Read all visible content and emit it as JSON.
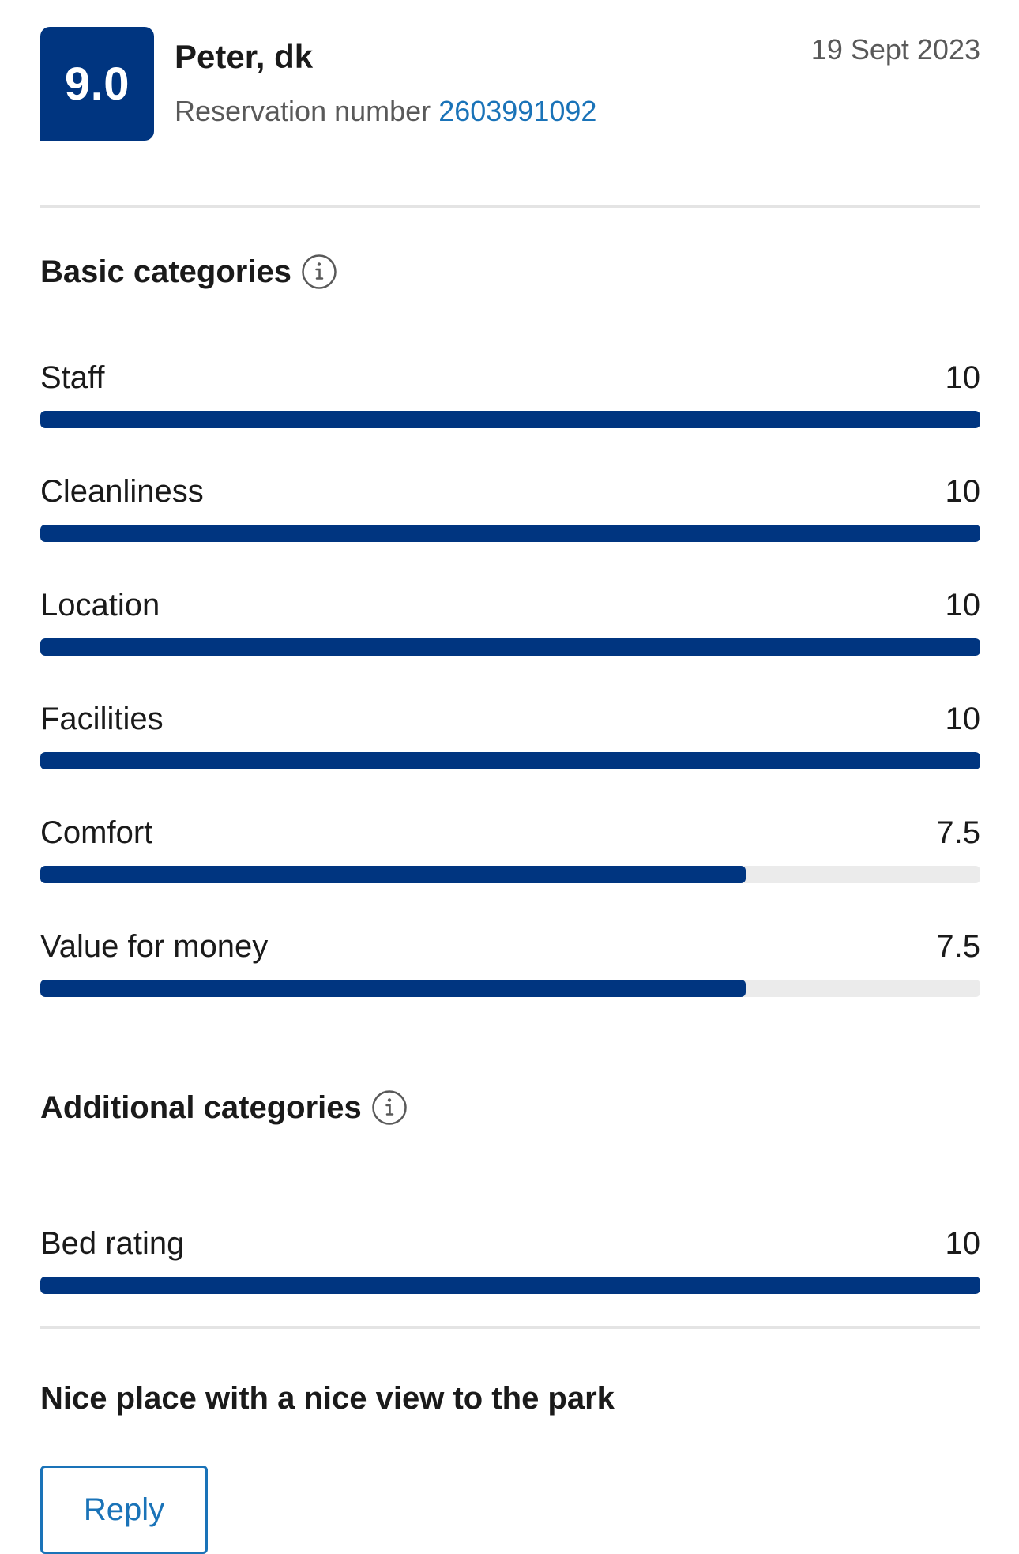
{
  "header": {
    "score": "9.0",
    "guest_name": "Peter, dk",
    "reservation_label": "Reservation number",
    "reservation_number": "2603991092",
    "date": "19 Sept 2023"
  },
  "basic": {
    "title": "Basic categories",
    "info_icon": "info-icon",
    "ratings": [
      {
        "label": "Staff",
        "value": "10",
        "score": 10
      },
      {
        "label": "Cleanliness",
        "value": "10",
        "score": 10
      },
      {
        "label": "Location",
        "value": "10",
        "score": 10
      },
      {
        "label": "Facilities",
        "value": "10",
        "score": 10
      },
      {
        "label": "Comfort",
        "value": "7.5",
        "score": 7.5
      },
      {
        "label": "Value for money",
        "value": "7.5",
        "score": 7.5
      }
    ]
  },
  "additional": {
    "title": "Additional categories",
    "info_icon": "info-icon",
    "ratings": [
      {
        "label": "Bed rating",
        "value": "10",
        "score": 10
      }
    ]
  },
  "review": {
    "title": "Nice place with a nice view to the park"
  },
  "actions": {
    "reply_label": "Reply"
  },
  "colors": {
    "brand": "#003580",
    "link": "#1a73b8",
    "track": "#ebebeb"
  },
  "scale_max": 10
}
